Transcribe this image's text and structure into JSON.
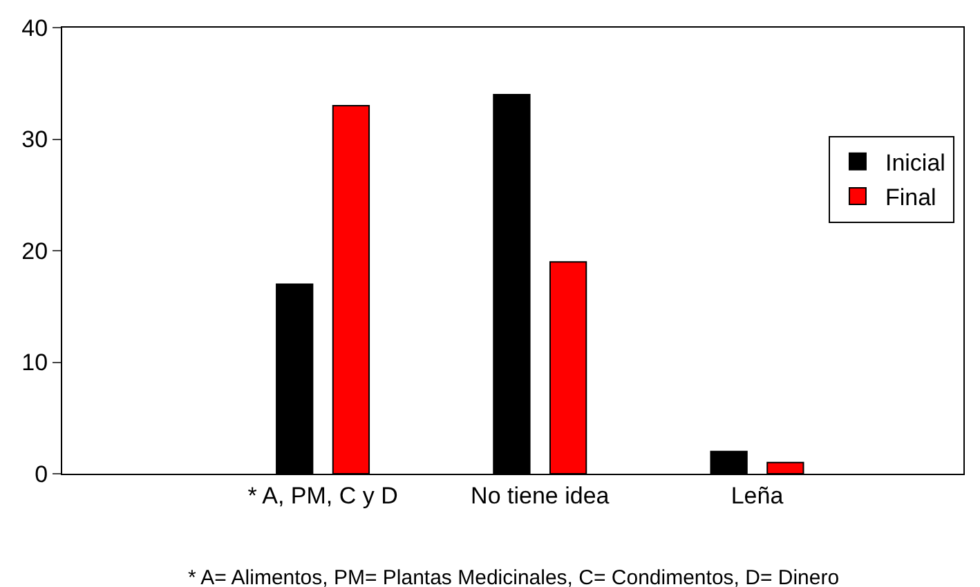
{
  "chart_data": {
    "type": "bar",
    "categories": [
      "* A, PM, C y D",
      "No tiene idea",
      "Leña"
    ],
    "series": [
      {
        "name": "Inicial",
        "color": "#000000",
        "values": [
          17,
          34,
          2
        ]
      },
      {
        "name": "Final",
        "color": "#ff0000",
        "values": [
          33,
          19,
          1
        ]
      }
    ],
    "ylim": [
      0,
      40
    ],
    "yticks": [
      0,
      10,
      20,
      30,
      40
    ],
    "grid": false,
    "legend": "right",
    "annotations": [
      "* A= Alimentos, PM= Plantas Medicinales, C= Condimentos, D= Dinero"
    ]
  }
}
